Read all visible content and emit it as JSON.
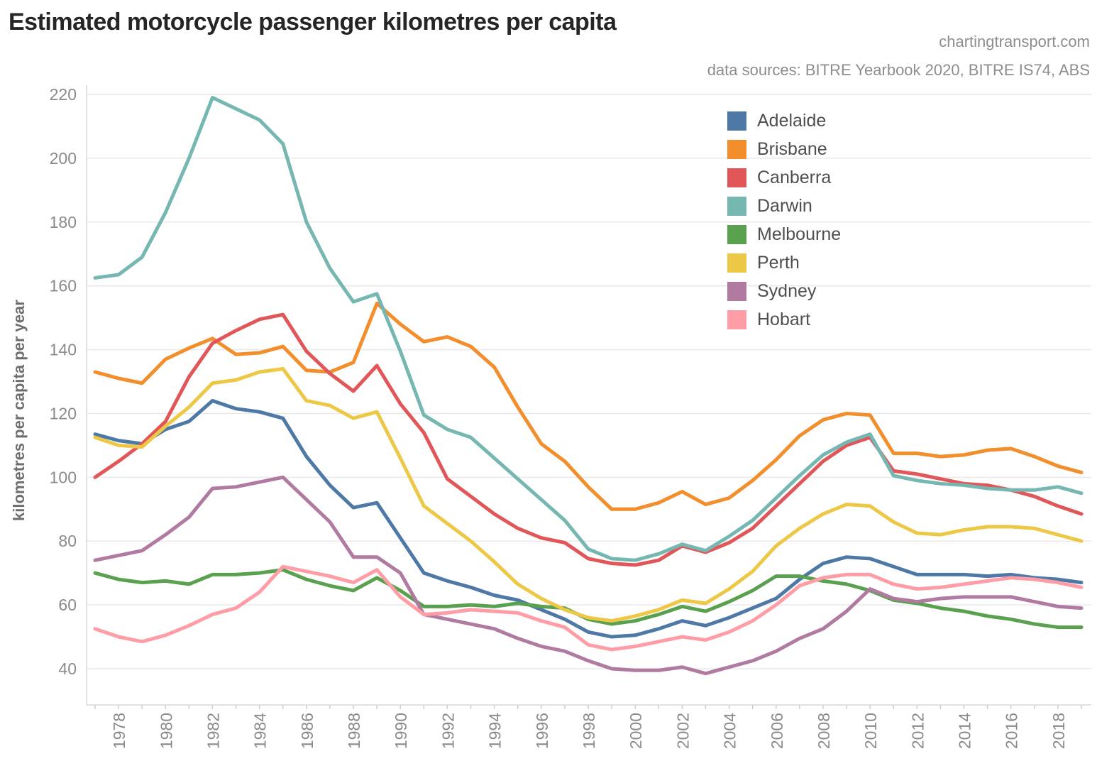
{
  "header": {
    "title": "Estimated motorcycle passenger kilometres per capita",
    "watermark": "chartingtransport.com",
    "sources": "data sources: BITRE Yearbook 2020, BITRE IS74, ABS"
  },
  "chart_data": {
    "type": "line",
    "title": "Estimated motorcycle passenger kilometres per capita",
    "xlabel": "",
    "ylabel": "kilometres per capita per year",
    "ylim": [
      40,
      220
    ],
    "yticks": [
      220,
      200,
      180,
      160,
      140,
      120,
      100,
      80,
      60,
      40
    ],
    "x_tick_labels": [
      1978,
      1980,
      1982,
      1984,
      1986,
      1988,
      1990,
      1992,
      1994,
      1996,
      1998,
      2000,
      2002,
      2004,
      2006,
      2008,
      2010,
      2012,
      2014,
      2016,
      2018
    ],
    "grid": "horizontal-only",
    "legend_position": "inside-top-right",
    "x": [
      1977,
      1978,
      1979,
      1980,
      1981,
      1982,
      1983,
      1984,
      1985,
      1986,
      1987,
      1988,
      1989,
      1990,
      1991,
      1992,
      1993,
      1994,
      1995,
      1996,
      1997,
      1998,
      1999,
      2000,
      2001,
      2002,
      2003,
      2004,
      2005,
      2006,
      2007,
      2008,
      2009,
      2010,
      2011,
      2012,
      2013,
      2014,
      2015,
      2016,
      2017,
      2018,
      2019
    ],
    "series": [
      {
        "name": "Adelaide",
        "color": "#4e79a7",
        "values": [
          113.5,
          111.5,
          110.5,
          115,
          117.5,
          124,
          121.5,
          120.5,
          118.5,
          106.5,
          97.5,
          90.5,
          92,
          81,
          70,
          67.5,
          65.5,
          63,
          61.5,
          58.5,
          55.5,
          51.5,
          50,
          50.5,
          52.5,
          55,
          53.5,
          56,
          59,
          62,
          68,
          73,
          75,
          74.5,
          72,
          69.5,
          69.5,
          69.5,
          69,
          69.5,
          68.5,
          68,
          67
        ]
      },
      {
        "name": "Brisbane",
        "color": "#f28e2b",
        "values": [
          133,
          131,
          129.5,
          137,
          140.5,
          143.5,
          138.5,
          139,
          141,
          133.5,
          133,
          136,
          154.5,
          148,
          142.5,
          144,
          141,
          134.5,
          122,
          110.5,
          105,
          97,
          90,
          90,
          92,
          95.5,
          91.5,
          93.5,
          99,
          105.5,
          113,
          118,
          120,
          119.5,
          107.5,
          107.5,
          106.5,
          107,
          108.5,
          109,
          106.5,
          103.5,
          101.5
        ]
      },
      {
        "name": "Canberra",
        "color": "#e15759",
        "values": [
          100,
          105,
          110.5,
          117.5,
          131.5,
          142,
          146,
          149.5,
          151,
          139.5,
          132.5,
          127,
          135,
          123,
          114,
          99.5,
          94,
          88.5,
          84,
          81,
          79.5,
          74.5,
          73,
          72.5,
          74,
          78.5,
          76.5,
          79.5,
          84,
          91,
          98,
          105,
          110,
          112.5,
          102,
          101,
          99.5,
          98,
          97.5,
          96,
          94,
          91,
          88.5
        ]
      },
      {
        "name": "Darwin",
        "color": "#76b7b2",
        "values": [
          162.5,
          163.5,
          169,
          183,
          200,
          219,
          215.5,
          212,
          204.5,
          180,
          165.5,
          155,
          157.5,
          139.5,
          119.5,
          115,
          112.5,
          106,
          99.5,
          93,
          86.5,
          77.5,
          74.5,
          74,
          76,
          79,
          77,
          81.5,
          86.5,
          93.5,
          100.5,
          107,
          111,
          113.5,
          100.5,
          99,
          98,
          97.5,
          96.5,
          96,
          96,
          97,
          95
        ]
      },
      {
        "name": "Melbourne",
        "color": "#59a14f",
        "values": [
          70,
          68,
          67,
          67.5,
          66.5,
          69.5,
          69.5,
          70,
          71,
          68,
          66,
          64.5,
          68.5,
          64.5,
          59.5,
          59.5,
          60,
          59.5,
          60.5,
          59.5,
          59,
          55.5,
          54,
          55,
          57,
          59.5,
          58,
          61,
          64.5,
          69,
          69,
          67.5,
          66.5,
          64.5,
          61.5,
          60.5,
          59,
          58,
          56.5,
          55.5,
          54,
          53,
          53
        ]
      },
      {
        "name": "Perth",
        "color": "#ecc846",
        "values": [
          112.5,
          110,
          109.5,
          116,
          122,
          129.5,
          130.5,
          133,
          134,
          124,
          122.5,
          118.5,
          120.5,
          106,
          91,
          85.5,
          80,
          73.5,
          66.5,
          62,
          58.5,
          56,
          55,
          56.5,
          58.5,
          61.5,
          60.5,
          65,
          70.5,
          78.5,
          84,
          88.5,
          91.5,
          91,
          86,
          82.5,
          82,
          83.5,
          84.5,
          84.5,
          84,
          82,
          80
        ]
      },
      {
        "name": "Sydney",
        "color": "#b07aa1",
        "values": [
          74,
          75.5,
          77,
          82,
          87.5,
          96.5,
          97,
          98.5,
          100,
          93,
          86,
          75,
          75,
          70,
          57,
          55.5,
          54,
          52.5,
          49.5,
          47,
          45.5,
          42.5,
          40,
          39.5,
          39.5,
          40.5,
          38.5,
          40.5,
          42.5,
          45.5,
          49.5,
          52.5,
          58,
          65,
          62,
          61,
          62,
          62.5,
          62.5,
          62.5,
          61,
          59.5,
          59
        ]
      },
      {
        "name": "Hobart",
        "color": "#ff9da7",
        "values": [
          52.5,
          50,
          48.5,
          50.5,
          53.5,
          57,
          59,
          64,
          72,
          70.5,
          69,
          67,
          71,
          62.5,
          57,
          57.5,
          58.5,
          58,
          57.5,
          55,
          53,
          47.5,
          46,
          47,
          48.5,
          50,
          49,
          51.5,
          55,
          60,
          66,
          68.5,
          69.5,
          69.5,
          66.5,
          65,
          65.5,
          66.5,
          67.5,
          68.5,
          68,
          67,
          65.5
        ]
      }
    ]
  }
}
